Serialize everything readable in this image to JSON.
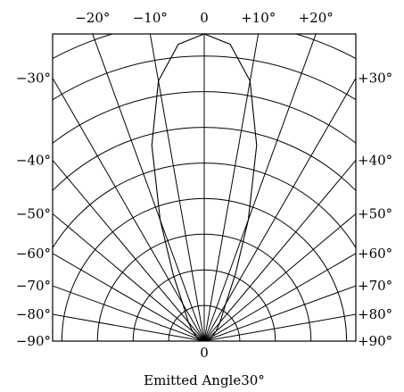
{
  "chart_data": {
    "type": "polar",
    "title": "",
    "xlabel": "Emitted Angle30°",
    "center_label": "0",
    "top_ticks": [
      "−20°",
      "−10°",
      "0",
      "+10°",
      "+20°"
    ],
    "top_tick_angles": [
      -20,
      -10,
      0,
      10,
      20
    ],
    "left_ticks": [
      "−30°",
      "−40°",
      "−50°",
      "−60°",
      "−70°",
      "−80°",
      "−90°"
    ],
    "right_ticks": [
      "+30°",
      "+40°",
      "+50°",
      "+60°",
      "+70°",
      "+80°",
      "+90°"
    ],
    "side_tick_angles": [
      30,
      40,
      50,
      60,
      70,
      80,
      90
    ],
    "radial_spoke_angles": [
      -90,
      -80,
      -70,
      -60,
      -50,
      -40,
      -30,
      -20,
      -10,
      0,
      10,
      20,
      30,
      40,
      50,
      60,
      70,
      80,
      90
    ],
    "concentric_rings": [
      0.1,
      0.2,
      0.3,
      0.4,
      0.5,
      0.6,
      0.7,
      0.8,
      0.9,
      1.0
    ],
    "series": [
      {
        "angles_deg": [
          -90,
          -80,
          -70,
          -60,
          -50,
          -40,
          -30,
          -25,
          -20,
          -15,
          -10,
          -5,
          0,
          5,
          10,
          15,
          20,
          25,
          30,
          40,
          50,
          60,
          70,
          80,
          90
        ],
        "relative_intensity": [
          0,
          0.01,
          0.02,
          0.03,
          0.05,
          0.08,
          0.14,
          0.24,
          0.42,
          0.66,
          0.86,
          0.97,
          1.0,
          0.97,
          0.86,
          0.66,
          0.42,
          0.24,
          0.14,
          0.08,
          0.05,
          0.03,
          0.02,
          0.01,
          0
        ]
      }
    ],
    "grid": true
  }
}
